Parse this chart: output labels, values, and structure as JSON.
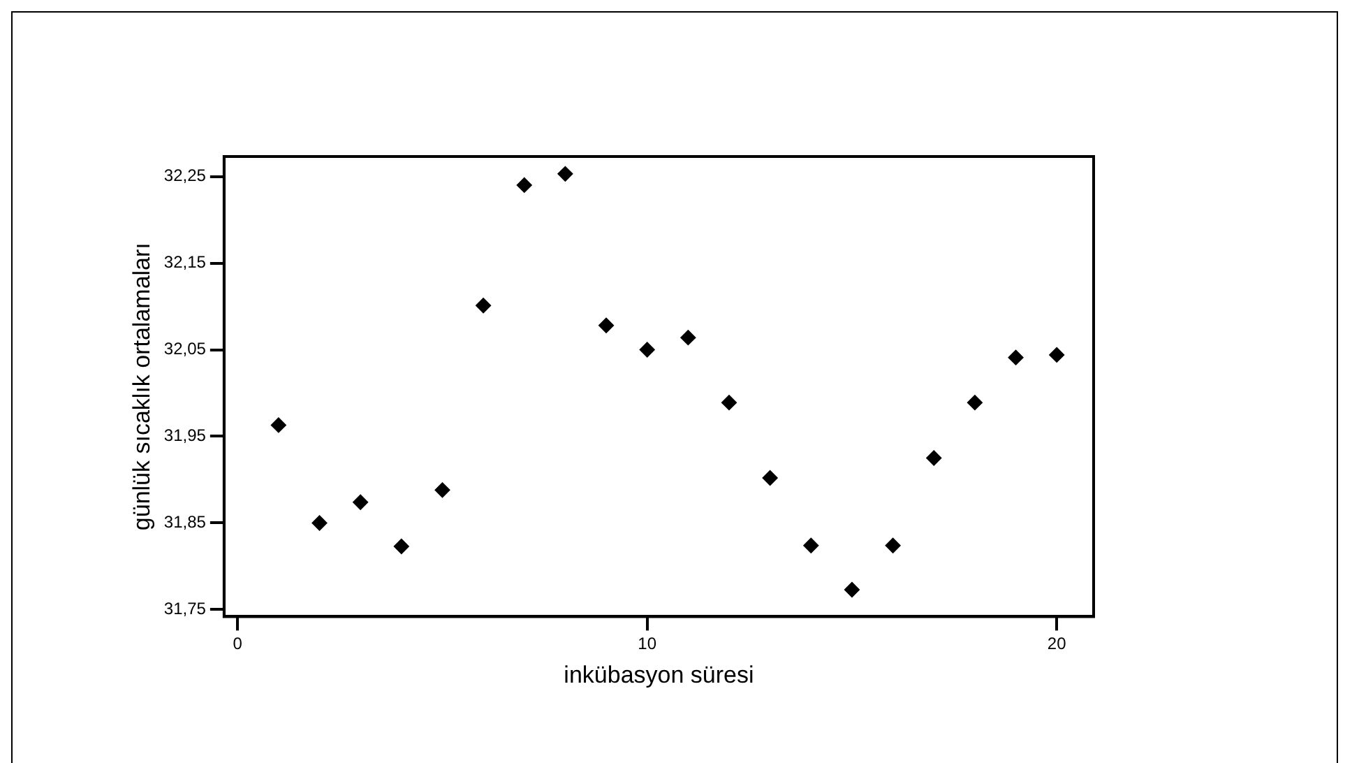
{
  "chart_data": {
    "type": "scatter",
    "xlabel": "inkübasyon süresi",
    "ylabel": "günlük sıcaklık ortalamaları",
    "x": [
      1,
      2,
      3,
      4,
      5,
      6,
      7,
      8,
      9,
      10,
      11,
      12,
      13,
      14,
      15,
      16,
      17,
      18,
      19,
      20
    ],
    "series": [
      {
        "color": "#000000",
        "values": [
          31.963,
          31.85,
          31.874,
          31.823,
          31.888,
          32.101,
          32.24,
          32.253,
          32.078,
          32.05,
          32.064,
          31.989,
          31.902,
          31.824,
          31.773,
          31.824,
          31.925,
          31.989,
          32.041,
          32.044
        ]
      }
    ],
    "xlim": [
      -0.33,
      20.9
    ],
    "xticks": [
      0,
      10,
      20
    ],
    "ylim": [
      31.742,
      32.273
    ],
    "yticks": [
      {
        "value": 31.75,
        "label": "31,75"
      },
      {
        "value": 31.85,
        "label": "31,85"
      },
      {
        "value": 31.95,
        "label": "31,95"
      },
      {
        "value": 32.05,
        "label": "32,05"
      },
      {
        "value": 32.15,
        "label": "32,15"
      },
      {
        "value": 32.25,
        "label": "32,25"
      }
    ],
    "grid": false,
    "legend": false,
    "marker": "diamond"
  }
}
